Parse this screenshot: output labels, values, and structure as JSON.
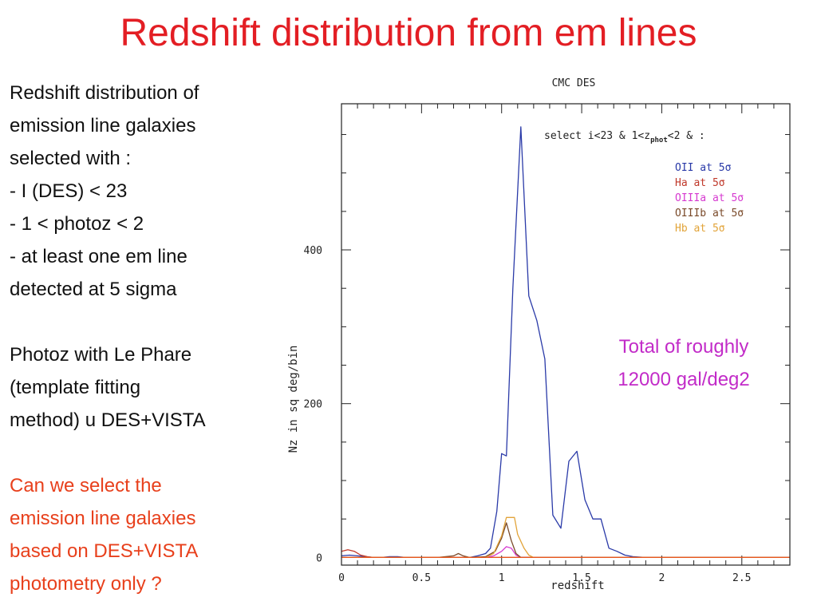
{
  "slide": {
    "title": "Redshift distribution from em lines",
    "description_lines": [
      "Redshift distribution of",
      "emission line galaxies",
      "selected with :",
      "- I (DES) < 23",
      "- 1 < photoz < 2",
      "- at least  one em line",
      "detected at 5 sigma"
    ],
    "method_lines": [
      "Photoz with Le Phare",
      "(template fitting",
      "method) u DES+VISTA"
    ],
    "question_lines": [
      "Can we select the",
      "emission line galaxies",
      "based on DES+VISTA",
      "photometry only ?"
    ],
    "note_lines": [
      "Total of roughly",
      "12000 gal/deg2"
    ],
    "colors": {
      "title": "#e31e24",
      "question": "#e8401c",
      "note": "#c22bc8"
    }
  },
  "chart_data": {
    "type": "line",
    "title": "CMC DES",
    "xlabel": "redshift",
    "ylabel": "Nz in sq deg/bin",
    "xlim": [
      0,
      2.8
    ],
    "ylim": [
      -10,
      590
    ],
    "x_ticks": [
      0,
      0.5,
      1,
      1.5,
      2,
      2.5
    ],
    "x_tick_labels": [
      "0",
      "0.5",
      "1",
      "1.5",
      "2",
      "2.5"
    ],
    "y_ticks": [
      0,
      200,
      400
    ],
    "y_tick_labels": [
      "0",
      "200",
      "400"
    ],
    "selection": {
      "prefix": "select i<23 & 1<z",
      "subscript": "phot",
      "suffix": "<2 & :"
    },
    "legend_position": "top-right",
    "series": [
      {
        "name": "OII at 5σ",
        "color": "#2a3aa8",
        "x": [
          0,
          0.05,
          0.1,
          0.15,
          0.2,
          0.25,
          0.3,
          0.35,
          0.4,
          0.45,
          0.5,
          0.55,
          0.6,
          0.65,
          0.7,
          0.75,
          0.8,
          0.85,
          0.9,
          0.93,
          0.97,
          1.0,
          1.03,
          1.07,
          1.12,
          1.17,
          1.22,
          1.27,
          1.32,
          1.37,
          1.42,
          1.47,
          1.52,
          1.57,
          1.62,
          1.67,
          1.72,
          1.77,
          1.82,
          1.9,
          2.0,
          2.2,
          2.4,
          2.6,
          2.8
        ],
        "y": [
          2,
          3,
          2,
          1,
          0,
          0,
          1,
          1,
          0,
          0,
          0,
          0,
          0,
          0,
          0,
          0,
          0,
          2,
          5,
          12,
          60,
          135,
          132,
          350,
          560,
          340,
          308,
          258,
          55,
          38,
          125,
          138,
          75,
          50,
          50,
          12,
          8,
          3,
          1,
          0,
          0,
          0,
          0,
          0,
          0
        ]
      },
      {
        "name": "Ha at 5σ",
        "color": "#c0392b",
        "x": [
          0,
          0.04,
          0.08,
          0.12,
          0.16,
          0.2,
          0.3,
          0.4,
          0.6,
          0.8,
          1.0,
          1.2,
          1.5,
          2.0,
          2.8
        ],
        "y": [
          8,
          10,
          8,
          3,
          1,
          0,
          0,
          0,
          0,
          0,
          0,
          0,
          0,
          0,
          0
        ]
      },
      {
        "name": "OIIIa at 5σ",
        "color": "#d63ad0",
        "x": [
          0,
          0.2,
          0.6,
          0.9,
          0.95,
          1.0,
          1.03,
          1.06,
          1.09,
          1.12,
          1.2,
          1.5,
          2.0,
          2.8
        ],
        "y": [
          0,
          0,
          0,
          0,
          2,
          8,
          14,
          12,
          3,
          0,
          0,
          0,
          0,
          0
        ]
      },
      {
        "name": "OIIIb at 5σ",
        "color": "#7a4a2a",
        "x": [
          0,
          0.3,
          0.6,
          0.7,
          0.73,
          0.76,
          0.8,
          0.9,
          0.96,
          1.0,
          1.03,
          1.06,
          1.09,
          1.12,
          1.2,
          1.5,
          2.0,
          2.8
        ],
        "y": [
          0,
          0,
          0,
          2,
          5,
          2,
          0,
          1,
          8,
          25,
          45,
          22,
          5,
          0,
          0,
          0,
          0,
          0
        ]
      },
      {
        "name": "Hb at 5σ",
        "color": "#e2a43a",
        "x": [
          0,
          0.3,
          0.6,
          0.9,
          0.95,
          1.0,
          1.03,
          1.06,
          1.08,
          1.1,
          1.14,
          1.17,
          1.2,
          1.4,
          2.0,
          2.8
        ],
        "y": [
          0,
          0,
          0,
          0,
          5,
          28,
          52,
          52,
          52,
          30,
          12,
          3,
          0,
          0,
          0,
          0
        ]
      },
      {
        "name": "",
        "color": "#e8561c",
        "x": [
          0,
          0.3,
          0.6,
          1.0,
          1.5,
          2.0,
          2.5,
          2.8
        ],
        "y": [
          0,
          0,
          0,
          0,
          0,
          0,
          0,
          0
        ]
      }
    ]
  }
}
